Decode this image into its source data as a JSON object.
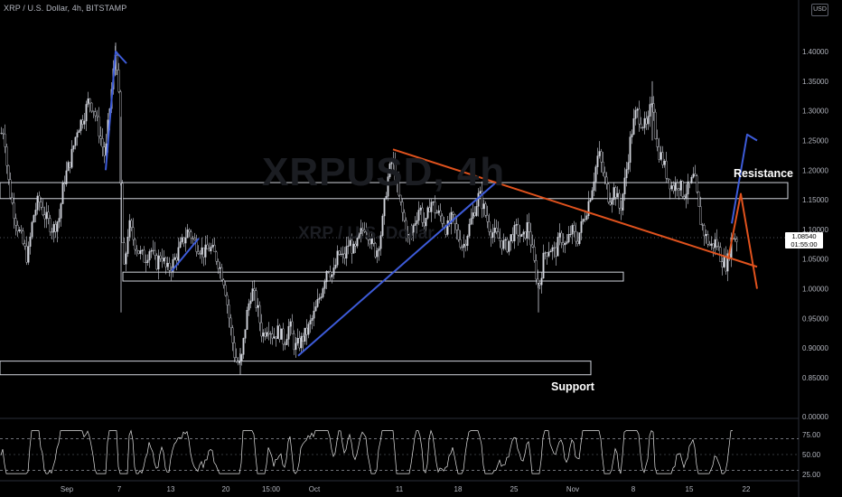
{
  "header": {
    "title": "XRP / U.S. Dollar, 4h, BITSTAMP",
    "currency": "USD"
  },
  "watermark": {
    "symbol": "XRPUSD, 4h",
    "name": "XRP / U.S. Dollar"
  },
  "labels": {
    "resistance": "Resistance",
    "support": "Support"
  },
  "last_price": {
    "value": "1.08540",
    "countdown": "01:55:00"
  },
  "colors": {
    "background": "#000000",
    "candle": "#d1d4dc",
    "blue_drawing": "#3d5bd9",
    "orange_drawing": "#e0521d",
    "zone_border": "#d1d4dc",
    "rsi_line": "#e3e3e3"
  },
  "chart_data": [
    {
      "type": "candlestick",
      "y_ticks": [
        "1.40000",
        "1.35000",
        "1.30000",
        "1.25000",
        "1.20000",
        "1.15000",
        "1.10000",
        "1.05000",
        "1.00000",
        "0.95000",
        "0.90000",
        "0.85000"
      ],
      "ylim": [
        0.8,
        1.45
      ],
      "x_ticks": [
        "Sep",
        "7",
        "13",
        "20",
        "15:00",
        "Oct",
        "11",
        "18",
        "25",
        "Nov",
        "8",
        "15",
        "22"
      ],
      "price_path": [
        [
          0,
          1.26
        ],
        [
          4,
          1.27
        ],
        [
          8,
          1.19
        ],
        [
          12,
          1.15
        ],
        [
          18,
          1.11
        ],
        [
          24,
          1.08
        ],
        [
          30,
          1.05
        ],
        [
          36,
          1.12
        ],
        [
          42,
          1.15
        ],
        [
          50,
          1.12
        ],
        [
          58,
          1.1
        ],
        [
          65,
          1.12
        ],
        [
          70,
          1.18
        ],
        [
          78,
          1.22
        ],
        [
          85,
          1.27
        ],
        [
          92,
          1.29
        ],
        [
          98,
          1.32
        ],
        [
          104,
          1.3
        ],
        [
          110,
          1.26
        ],
        [
          116,
          1.22
        ],
        [
          120,
          1.29
        ],
        [
          124,
          1.35
        ],
        [
          128,
          1.41
        ],
        [
          131,
          1.32
        ],
        [
          134,
          1.1
        ],
        [
          137,
          1.03
        ],
        [
          142,
          1.11
        ],
        [
          148,
          1.08
        ],
        [
          154,
          1.06
        ],
        [
          160,
          1.05
        ],
        [
          166,
          1.07
        ],
        [
          172,
          1.04
        ],
        [
          178,
          1.06
        ],
        [
          184,
          1.03
        ],
        [
          190,
          1.04
        ],
        [
          196,
          1.06
        ],
        [
          202,
          1.08
        ],
        [
          208,
          1.1
        ],
        [
          214,
          1.08
        ],
        [
          220,
          1.07
        ],
        [
          226,
          1.06
        ],
        [
          232,
          1.07
        ],
        [
          240,
          1.05
        ],
        [
          248,
          1.01
        ],
        [
          254,
          0.94
        ],
        [
          260,
          0.88
        ],
        [
          266,
          0.87
        ],
        [
          272,
          0.95
        ],
        [
          278,
          1.0
        ],
        [
          284,
          0.97
        ],
        [
          290,
          0.92
        ],
        [
          296,
          0.94
        ],
        [
          302,
          0.92
        ],
        [
          308,
          0.93
        ],
        [
          314,
          0.91
        ],
        [
          320,
          0.94
        ],
        [
          326,
          0.9
        ],
        [
          332,
          0.91
        ],
        [
          340,
          0.93
        ],
        [
          348,
          0.96
        ],
        [
          356,
          1.0
        ],
        [
          362,
          1.04
        ],
        [
          368,
          1.02
        ],
        [
          374,
          1.06
        ],
        [
          380,
          1.05
        ],
        [
          386,
          1.08
        ],
        [
          392,
          1.06
        ],
        [
          398,
          1.09
        ],
        [
          404,
          1.11
        ],
        [
          410,
          1.08
        ],
        [
          416,
          1.06
        ],
        [
          422,
          1.1
        ],
        [
          428,
          1.18
        ],
        [
          434,
          1.22
        ],
        [
          440,
          1.16
        ],
        [
          446,
          1.12
        ],
        [
          452,
          1.08
        ],
        [
          458,
          1.11
        ],
        [
          464,
          1.14
        ],
        [
          470,
          1.1
        ],
        [
          476,
          1.15
        ],
        [
          482,
          1.13
        ],
        [
          488,
          1.12
        ],
        [
          494,
          1.1
        ],
        [
          500,
          1.12
        ],
        [
          506,
          1.09
        ],
        [
          512,
          1.07
        ],
        [
          518,
          1.1
        ],
        [
          524,
          1.13
        ],
        [
          530,
          1.16
        ],
        [
          536,
          1.13
        ],
        [
          542,
          1.1
        ],
        [
          548,
          1.09
        ],
        [
          554,
          1.08
        ],
        [
          560,
          1.07
        ],
        [
          566,
          1.09
        ],
        [
          572,
          1.1
        ],
        [
          578,
          1.08
        ],
        [
          584,
          1.11
        ],
        [
          590,
          1.05
        ],
        [
          596,
          1.0
        ],
        [
          602,
          1.06
        ],
        [
          608,
          1.07
        ],
        [
          614,
          1.06
        ],
        [
          620,
          1.09
        ],
        [
          626,
          1.07
        ],
        [
          632,
          1.1
        ],
        [
          638,
          1.08
        ],
        [
          644,
          1.11
        ],
        [
          650,
          1.14
        ],
        [
          656,
          1.18
        ],
        [
          662,
          1.23
        ],
        [
          668,
          1.19
        ],
        [
          674,
          1.15
        ],
        [
          680,
          1.17
        ],
        [
          686,
          1.13
        ],
        [
          692,
          1.19
        ],
        [
          698,
          1.26
        ],
        [
          704,
          1.3
        ],
        [
          710,
          1.28
        ],
        [
          716,
          1.27
        ],
        [
          722,
          1.33
        ],
        [
          726,
          1.24
        ],
        [
          732,
          1.22
        ],
        [
          738,
          1.19
        ],
        [
          744,
          1.17
        ],
        [
          750,
          1.18
        ],
        [
          756,
          1.16
        ],
        [
          762,
          1.17
        ],
        [
          768,
          1.19
        ],
        [
          774,
          1.12
        ],
        [
          780,
          1.09
        ],
        [
          786,
          1.07
        ],
        [
          792,
          1.08
        ],
        [
          798,
          1.05
        ],
        [
          804,
          1.04
        ],
        [
          810,
          1.09
        ],
        [
          815,
          1.085
        ]
      ],
      "drawings": {
        "resistance_zone": [
          1.152,
          1.179
        ],
        "mid_support_zone": [
          1.013,
          1.028
        ],
        "support_zone": [
          0.855,
          0.878
        ],
        "blue_lines": [
          [
            [
              117,
              1.2
            ],
            [
              128,
              1.4
            ],
            [
              140,
              1.38
            ]
          ],
          [
            [
              190,
              1.03
            ],
            [
              220,
              1.085
            ]
          ],
          [
            [
              330,
              0.887
            ],
            [
              548,
              1.178
            ]
          ],
          [
            [
              810,
              1.11
            ],
            [
              827,
              1.26
            ],
            [
              838,
              1.25
            ]
          ]
        ],
        "orange_lines": [
          [
            [
              435,
              1.235
            ],
            [
              838,
              1.037
            ]
          ],
          [
            [
              806,
              1.05
            ],
            [
              820,
              1.16
            ],
            [
              838,
              1.0
            ]
          ]
        ]
      }
    },
    {
      "type": "line",
      "name": "RSI",
      "y_ticks": [
        "75.00",
        "50.00",
        "25.00"
      ],
      "ylim": [
        20,
        85
      ],
      "bands": [
        70,
        30
      ]
    }
  ]
}
